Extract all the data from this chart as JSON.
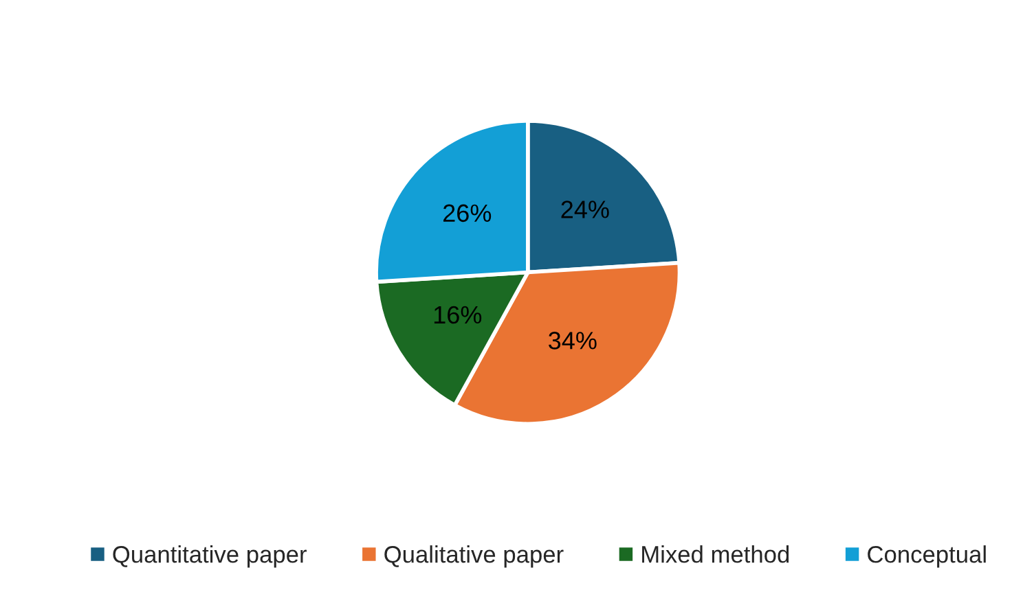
{
  "chart_data": {
    "type": "pie",
    "categories": [
      "Quantitative paper",
      "Qualitative paper",
      "Mixed method",
      "Conceptual"
    ],
    "values": [
      24,
      34,
      16,
      26
    ],
    "colors": [
      "#185f82",
      "#ea7433",
      "#1b6a23",
      "#139fd6"
    ],
    "value_labels": [
      "24%",
      "34%",
      "16%",
      "26%"
    ],
    "legend": "bottom"
  }
}
